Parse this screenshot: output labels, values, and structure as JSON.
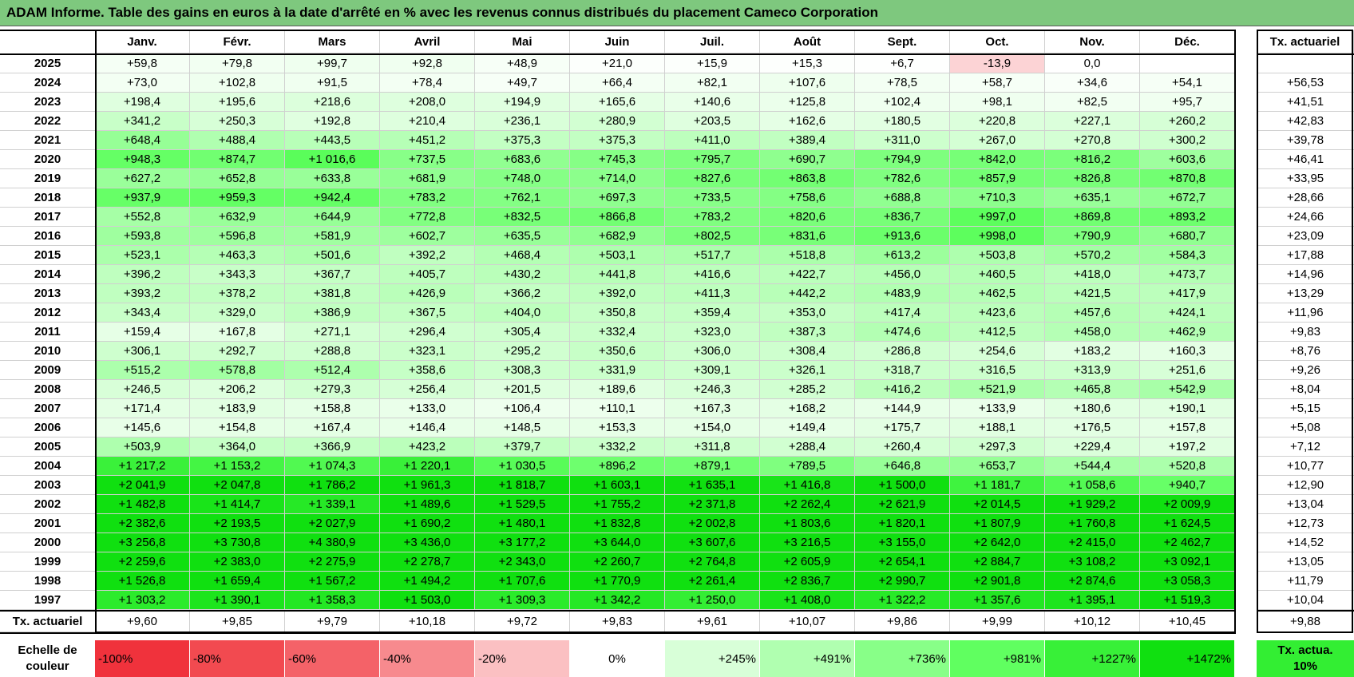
{
  "header": {
    "title": "ADAM Informe. Table des gains en euros à la date d'arrêté en % avec les revenus connus distribués du placement Cameco Corporation"
  },
  "table": {
    "columns": [
      "Janv.",
      "Févr.",
      "Mars",
      "Avril",
      "Mai",
      "Juin",
      "Juil.",
      "Août",
      "Sept.",
      "Oct.",
      "Nov.",
      "Déc."
    ],
    "total_column": "Tx. actuariel",
    "rows": [
      {
        "year": "2025",
        "values": [
          "+59,8",
          "+79,8",
          "+99,7",
          "+92,8",
          "+48,9",
          "+21,0",
          "+15,9",
          "+15,3",
          "+6,7",
          "-13,9",
          "0,0",
          null
        ],
        "total": null
      },
      {
        "year": "2024",
        "values": [
          "+73,0",
          "+102,8",
          "+91,5",
          "+78,4",
          "+49,7",
          "+66,4",
          "+82,1",
          "+107,6",
          "+78,5",
          "+58,7",
          "+34,6",
          "+54,1"
        ],
        "total": "+56,53"
      },
      {
        "year": "2023",
        "values": [
          "+198,4",
          "+195,6",
          "+218,6",
          "+208,0",
          "+194,9",
          "+165,6",
          "+140,6",
          "+125,8",
          "+102,4",
          "+98,1",
          "+82,5",
          "+95,7"
        ],
        "total": "+41,51"
      },
      {
        "year": "2022",
        "values": [
          "+341,2",
          "+250,3",
          "+192,8",
          "+210,4",
          "+236,1",
          "+280,9",
          "+203,5",
          "+162,6",
          "+180,5",
          "+220,8",
          "+227,1",
          "+260,2"
        ],
        "total": "+42,83"
      },
      {
        "year": "2021",
        "values": [
          "+648,4",
          "+488,4",
          "+443,5",
          "+451,2",
          "+375,3",
          "+375,3",
          "+411,0",
          "+389,4",
          "+311,0",
          "+267,0",
          "+270,8",
          "+300,2"
        ],
        "total": "+39,78"
      },
      {
        "year": "2020",
        "values": [
          "+948,3",
          "+874,7",
          "+1 016,6",
          "+737,5",
          "+683,6",
          "+745,3",
          "+795,7",
          "+690,7",
          "+794,9",
          "+842,0",
          "+816,2",
          "+603,6"
        ],
        "total": "+46,41"
      },
      {
        "year": "2019",
        "values": [
          "+627,2",
          "+652,8",
          "+633,8",
          "+681,9",
          "+748,0",
          "+714,0",
          "+827,6",
          "+863,8",
          "+782,6",
          "+857,9",
          "+826,8",
          "+870,8"
        ],
        "total": "+33,95"
      },
      {
        "year": "2018",
        "values": [
          "+937,9",
          "+959,3",
          "+942,4",
          "+783,2",
          "+762,1",
          "+697,3",
          "+733,5",
          "+758,6",
          "+688,8",
          "+710,3",
          "+635,1",
          "+672,7"
        ],
        "total": "+28,66"
      },
      {
        "year": "2017",
        "values": [
          "+552,8",
          "+632,9",
          "+644,9",
          "+772,8",
          "+832,5",
          "+866,8",
          "+783,2",
          "+820,6",
          "+836,7",
          "+997,0",
          "+869,8",
          "+893,2"
        ],
        "total": "+24,66"
      },
      {
        "year": "2016",
        "values": [
          "+593,8",
          "+596,8",
          "+581,9",
          "+602,7",
          "+635,5",
          "+682,9",
          "+802,5",
          "+831,6",
          "+913,6",
          "+998,0",
          "+790,9",
          "+680,7"
        ],
        "total": "+23,09"
      },
      {
        "year": "2015",
        "values": [
          "+523,1",
          "+463,3",
          "+501,6",
          "+392,2",
          "+468,4",
          "+503,1",
          "+517,7",
          "+518,8",
          "+613,2",
          "+503,8",
          "+570,2",
          "+584,3"
        ],
        "total": "+17,88"
      },
      {
        "year": "2014",
        "values": [
          "+396,2",
          "+343,3",
          "+367,7",
          "+405,7",
          "+430,2",
          "+441,8",
          "+416,6",
          "+422,7",
          "+456,0",
          "+460,5",
          "+418,0",
          "+473,7"
        ],
        "total": "+14,96"
      },
      {
        "year": "2013",
        "values": [
          "+393,2",
          "+378,2",
          "+381,8",
          "+426,9",
          "+366,2",
          "+392,0",
          "+411,3",
          "+442,2",
          "+483,9",
          "+462,5",
          "+421,5",
          "+417,9"
        ],
        "total": "+13,29"
      },
      {
        "year": "2012",
        "values": [
          "+343,4",
          "+329,0",
          "+386,9",
          "+367,5",
          "+404,0",
          "+350,8",
          "+359,4",
          "+353,0",
          "+417,4",
          "+423,6",
          "+457,6",
          "+424,1"
        ],
        "total": "+11,96"
      },
      {
        "year": "2011",
        "values": [
          "+159,4",
          "+167,8",
          "+271,1",
          "+296,4",
          "+305,4",
          "+332,4",
          "+323,0",
          "+387,3",
          "+474,6",
          "+412,5",
          "+458,0",
          "+462,9"
        ],
        "total": "+9,83"
      },
      {
        "year": "2010",
        "values": [
          "+306,1",
          "+292,7",
          "+288,8",
          "+323,1",
          "+295,2",
          "+350,6",
          "+306,0",
          "+308,4",
          "+286,8",
          "+254,6",
          "+183,2",
          "+160,3"
        ],
        "total": "+8,76"
      },
      {
        "year": "2009",
        "values": [
          "+515,2",
          "+578,8",
          "+512,4",
          "+358,6",
          "+308,3",
          "+331,9",
          "+309,1",
          "+326,1",
          "+318,7",
          "+316,5",
          "+313,9",
          "+251,6"
        ],
        "total": "+9,26"
      },
      {
        "year": "2008",
        "values": [
          "+246,5",
          "+206,2",
          "+279,3",
          "+256,4",
          "+201,5",
          "+189,6",
          "+246,3",
          "+285,2",
          "+416,2",
          "+521,9",
          "+465,8",
          "+542,9"
        ],
        "total": "+8,04"
      },
      {
        "year": "2007",
        "values": [
          "+171,4",
          "+183,9",
          "+158,8",
          "+133,0",
          "+106,4",
          "+110,1",
          "+167,3",
          "+168,2",
          "+144,9",
          "+133,9",
          "+180,6",
          "+190,1"
        ],
        "total": "+5,15"
      },
      {
        "year": "2006",
        "values": [
          "+145,6",
          "+154,8",
          "+167,4",
          "+146,4",
          "+148,5",
          "+153,3",
          "+154,0",
          "+149,4",
          "+175,7",
          "+188,1",
          "+176,5",
          "+157,8"
        ],
        "total": "+5,08"
      },
      {
        "year": "2005",
        "values": [
          "+503,9",
          "+364,0",
          "+366,9",
          "+423,2",
          "+379,7",
          "+332,2",
          "+311,8",
          "+288,4",
          "+260,4",
          "+297,3",
          "+229,4",
          "+197,2"
        ],
        "total": "+7,12"
      },
      {
        "year": "2004",
        "values": [
          "+1 217,2",
          "+1 153,2",
          "+1 074,3",
          "+1 220,1",
          "+1 030,5",
          "+896,2",
          "+879,1",
          "+789,5",
          "+646,8",
          "+653,7",
          "+544,4",
          "+520,8"
        ],
        "total": "+10,77"
      },
      {
        "year": "2003",
        "values": [
          "+2 041,9",
          "+2 047,8",
          "+1 786,2",
          "+1 961,3",
          "+1 818,7",
          "+1 603,1",
          "+1 635,1",
          "+1 416,8",
          "+1 500,0",
          "+1 181,7",
          "+1 058,6",
          "+940,7"
        ],
        "total": "+12,90"
      },
      {
        "year": "2002",
        "values": [
          "+1 482,8",
          "+1 414,7",
          "+1 339,1",
          "+1 489,6",
          "+1 529,5",
          "+1 755,2",
          "+2 371,8",
          "+2 262,4",
          "+2 621,9",
          "+2 014,5",
          "+1 929,2",
          "+2 009,9"
        ],
        "total": "+13,04"
      },
      {
        "year": "2001",
        "values": [
          "+2 382,6",
          "+2 193,5",
          "+2 027,9",
          "+1 690,2",
          "+1 480,1",
          "+1 832,8",
          "+2 002,8",
          "+1 803,6",
          "+1 820,1",
          "+1 807,9",
          "+1 760,8",
          "+1 624,5"
        ],
        "total": "+12,73"
      },
      {
        "year": "2000",
        "values": [
          "+3 256,8",
          "+3 730,8",
          "+4 380,9",
          "+3 436,0",
          "+3 177,2",
          "+3 644,0",
          "+3 607,6",
          "+3 216,5",
          "+3 155,0",
          "+2 642,0",
          "+2 415,0",
          "+2 462,7"
        ],
        "total": "+14,52"
      },
      {
        "year": "1999",
        "values": [
          "+2 259,6",
          "+2 383,0",
          "+2 275,9",
          "+2 278,7",
          "+2 343,0",
          "+2 260,7",
          "+2 764,8",
          "+2 605,9",
          "+2 654,1",
          "+2 884,7",
          "+3 108,2",
          "+3 092,1"
        ],
        "total": "+13,05"
      },
      {
        "year": "1998",
        "values": [
          "+1 526,8",
          "+1 659,4",
          "+1 567,2",
          "+1 494,2",
          "+1 707,6",
          "+1 770,9",
          "+2 261,4",
          "+2 836,7",
          "+2 990,7",
          "+2 901,8",
          "+2 874,6",
          "+3 058,3"
        ],
        "total": "+11,79"
      },
      {
        "year": "1997",
        "values": [
          "+1 303,2",
          "+1 390,1",
          "+1 358,3",
          "+1 503,0",
          "+1 309,3",
          "+1 342,2",
          "+1 250,0",
          "+1 408,0",
          "+1 322,2",
          "+1 357,6",
          "+1 395,1",
          "+1 519,3"
        ],
        "total": "+10,04"
      }
    ],
    "total_row": {
      "label": "Tx. actuariel",
      "values": [
        "+9,60",
        "+9,85",
        "+9,79",
        "+10,18",
        "+9,72",
        "+9,83",
        "+9,61",
        "+10,07",
        "+9,86",
        "+9,99",
        "+10,12",
        "+10,45"
      ],
      "total": "+9,88"
    }
  },
  "color_scale": {
    "label": "Echelle de couleur",
    "stops": [
      {
        "label": "-100%",
        "color": "#f0323c"
      },
      {
        "label": "-80%",
        "color": "#f24a50"
      },
      {
        "label": "-60%",
        "color": "#f46268"
      },
      {
        "label": "-40%",
        "color": "#f78a8e"
      },
      {
        "label": "-20%",
        "color": "#fbc0c2"
      },
      {
        "label": "0%",
        "color": "#ffffff"
      },
      {
        "label": "+245%",
        "color": "#d8ffd8"
      },
      {
        "label": "+491%",
        "color": "#b0ffb0"
      },
      {
        "label": "+736%",
        "color": "#88ff88"
      },
      {
        "label": "+981%",
        "color": "#60ff60"
      },
      {
        "label": "+1227%",
        "color": "#38f038"
      },
      {
        "label": "+1472%",
        "color": "#10e010"
      }
    ],
    "total_note": {
      "label": "Tx. actua. 10%",
      "color": "#33ee33"
    }
  }
}
